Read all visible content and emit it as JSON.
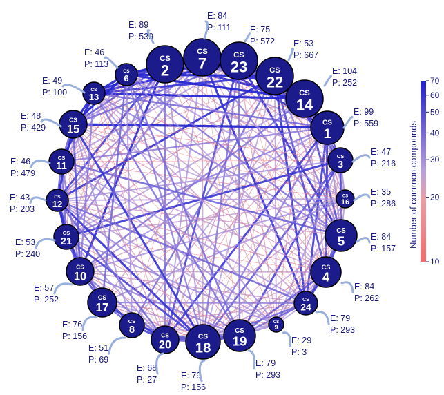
{
  "colors": {
    "node_fill": "#1b1b8c",
    "node_stroke": "#000000",
    "low": "#f08080",
    "mid": "#c8a8d8",
    "high": "#2a2ad0",
    "text": "#1a1a7a",
    "arrow": "#8fa8d8"
  },
  "colorbar": {
    "title": "Number of common compounds",
    "ticks": [
      "70",
      "60",
      "50",
      "40",
      "30",
      "20",
      "10"
    ],
    "scale": "log",
    "range": [
      10,
      70
    ]
  },
  "nodes": [
    {
      "id": "2",
      "cs": "CS",
      "num": "2",
      "e": "E: 89",
      "p": "P: 539"
    },
    {
      "id": "7",
      "cs": "CS",
      "num": "7",
      "e": "E: 84",
      "p": "P: 111"
    },
    {
      "id": "23",
      "cs": "CS",
      "num": "23",
      "e": "E: 75",
      "p": "P: 572"
    },
    {
      "id": "22",
      "cs": "CS",
      "num": "22",
      "e": "E: 53",
      "p": "P: 667"
    },
    {
      "id": "14",
      "cs": "CS",
      "num": "14",
      "e": "E: 104",
      "p": "P: 252"
    },
    {
      "id": "1",
      "cs": "CS",
      "num": "1",
      "e": "E: 99",
      "p": "P: 559"
    },
    {
      "id": "3",
      "cs": "CS",
      "num": "3",
      "e": "E: 47",
      "p": "P: 216"
    },
    {
      "id": "16",
      "cs": "CS",
      "num": "16",
      "e": "E: 35",
      "p": "P: 286"
    },
    {
      "id": "5",
      "cs": "CS",
      "num": "5",
      "e": "E: 84",
      "p": "P: 157"
    },
    {
      "id": "4",
      "cs": "CS",
      "num": "4",
      "e": "E: 84",
      "p": "P: 262"
    },
    {
      "id": "24",
      "cs": "CS",
      "num": "24",
      "e": "E: 79",
      "p": "P: 293"
    },
    {
      "id": "9",
      "cs": "CS",
      "num": "9",
      "e": "E: 29",
      "p": "P: 3"
    },
    {
      "id": "19",
      "cs": "CS",
      "num": "19",
      "e": "E: 79",
      "p": "P: 293"
    },
    {
      "id": "18",
      "cs": "CS",
      "num": "18",
      "e": "E: 79",
      "p": "P: 156"
    },
    {
      "id": "20",
      "cs": "CS",
      "num": "20",
      "e": "E: 68",
      "p": "P: 27"
    },
    {
      "id": "8",
      "cs": "CS",
      "num": "8",
      "e": "E: 51",
      "p": "P: 69"
    },
    {
      "id": "17",
      "cs": "CS",
      "num": "17",
      "e": "E: 76",
      "p": "P: 156"
    },
    {
      "id": "10",
      "cs": "CS",
      "num": "10",
      "e": "E: 57",
      "p": "P: 252"
    },
    {
      "id": "21",
      "cs": "CS",
      "num": "21",
      "e": "E: 53",
      "p": "P: 240"
    },
    {
      "id": "12",
      "cs": "CS",
      "num": "12",
      "e": "E: 43",
      "p": "P: 203"
    },
    {
      "id": "11",
      "cs": "CS",
      "num": "11",
      "e": "E: 46",
      "p": "P: 479"
    },
    {
      "id": "15",
      "cs": "CS",
      "num": "15",
      "e": "E: 48",
      "p": "P: 429"
    },
    {
      "id": "13",
      "cs": "CS",
      "num": "13",
      "e": "E: 49",
      "p": "P: 100"
    },
    {
      "id": "6",
      "cs": "CS",
      "num": "6",
      "e": "E: 46",
      "p": "P: 113"
    }
  ]
}
